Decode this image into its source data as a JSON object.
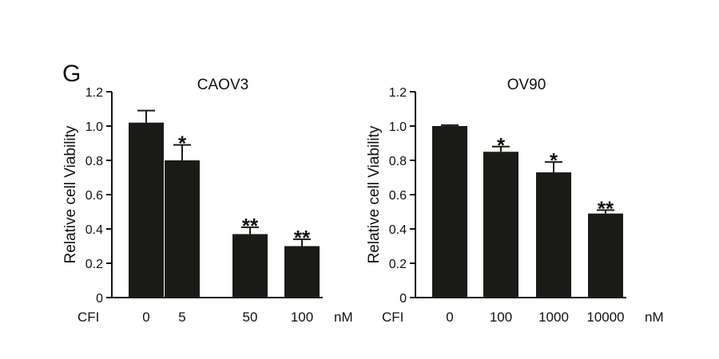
{
  "figure": {
    "panel_letter": "G"
  },
  "chart_data": [
    {
      "type": "bar",
      "title": "CAOV3",
      "ylabel": "Relative cell Viability",
      "xlabel_prefix": "CFI",
      "xlabel_unit": "nM",
      "categories": [
        "0",
        "5",
        "50",
        "100"
      ],
      "values": [
        1.02,
        0.8,
        0.37,
        0.3
      ],
      "errors": [
        0.07,
        0.09,
        0.04,
        0.04
      ],
      "significance": [
        "",
        "*",
        "**",
        "**"
      ],
      "ylim": [
        0,
        1.2
      ],
      "yticks": [
        "0",
        "0.2",
        "0.4",
        "0.6",
        "0.8",
        "1.0",
        "1.2"
      ],
      "bar_color": "#1a1a16",
      "grid": false
    },
    {
      "type": "bar",
      "title": "OV90",
      "ylabel": "Relative cell Viability",
      "xlabel_prefix": "CFI",
      "xlabel_unit": "nM",
      "categories": [
        "0",
        "100",
        "1000",
        "10000"
      ],
      "values": [
        1.0,
        0.85,
        0.73,
        0.49
      ],
      "errors": [
        0.005,
        0.03,
        0.06,
        0.02
      ],
      "significance": [
        "",
        "*",
        "*",
        "**"
      ],
      "ylim": [
        0,
        1.2
      ],
      "yticks": [
        "0",
        "0.2",
        "0.4",
        "0.6",
        "0.8",
        "1.0",
        "1.2"
      ],
      "bar_color": "#1a1a16",
      "grid": false
    }
  ]
}
